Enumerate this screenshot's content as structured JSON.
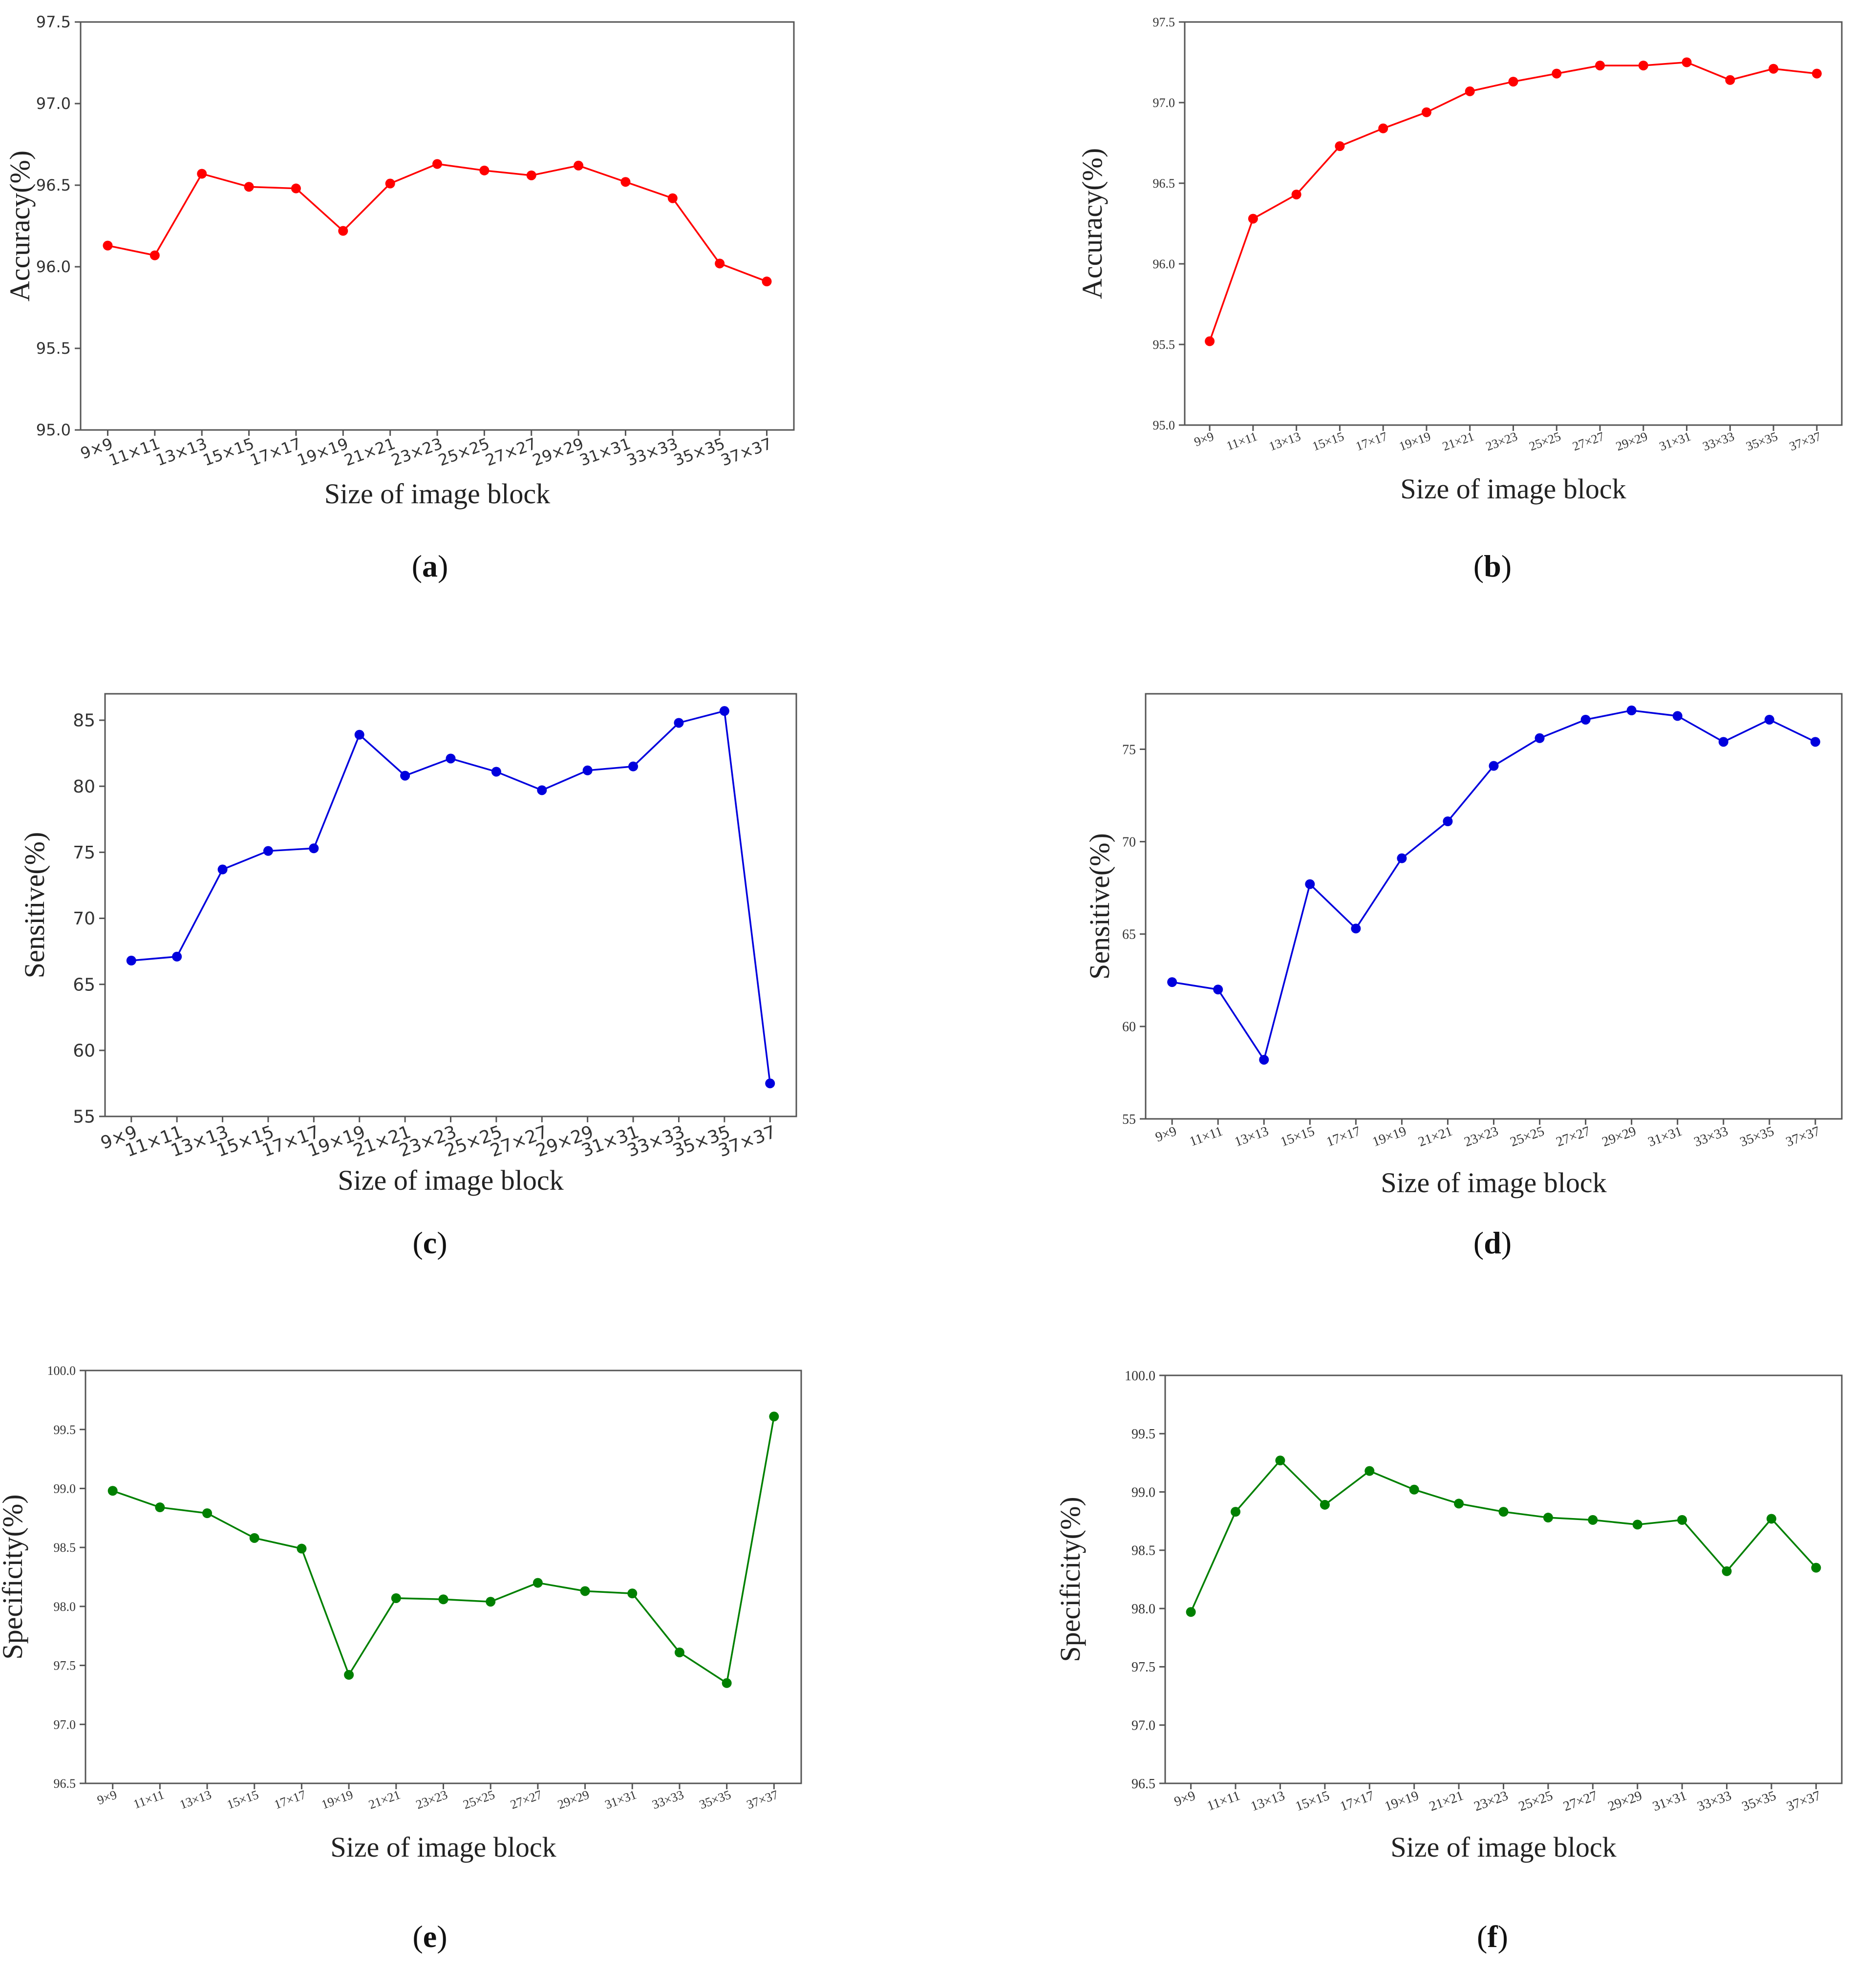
{
  "figure": {
    "panels": [
      "a",
      "b",
      "c",
      "d",
      "e",
      "f"
    ]
  },
  "chart_data": [
    {
      "id": "a",
      "caption": "a",
      "type": "line",
      "color": "#ff0000",
      "ylabel": "Accuracy(%)",
      "xlabel": "Size of image block",
      "ylim": [
        95.0,
        97.5
      ],
      "yticks": [
        95.0,
        95.5,
        96.0,
        96.5,
        97.0,
        97.5
      ],
      "ytick_decimals": 1,
      "categories": [
        "9×9",
        "11×11",
        "13×13",
        "15×15",
        "17×17",
        "19×19",
        "21×21",
        "23×23",
        "25×25",
        "27×27",
        "29×29",
        "31×31",
        "33×33",
        "35×35",
        "37×37"
      ],
      "values": [
        96.13,
        96.07,
        96.57,
        96.49,
        96.48,
        96.22,
        96.51,
        96.63,
        96.59,
        96.56,
        96.62,
        96.52,
        96.42,
        96.02,
        95.91
      ]
    },
    {
      "id": "b",
      "caption": "b",
      "type": "line",
      "color": "#ff0000",
      "ylabel": "Accuracy(%)",
      "xlabel": "Size of image block",
      "ylim": [
        95.0,
        97.5
      ],
      "yticks": [
        95.0,
        95.5,
        96.0,
        96.5,
        97.0,
        97.5
      ],
      "ytick_decimals": 1,
      "categories": [
        "9×9",
        "11×11",
        "13×13",
        "15×15",
        "17×17",
        "19×19",
        "21×21",
        "23×23",
        "25×25",
        "27×27",
        "29×29",
        "31×31",
        "33×33",
        "35×35",
        "37×37"
      ],
      "values": [
        95.52,
        96.28,
        96.43,
        96.73,
        96.84,
        96.94,
        97.07,
        97.13,
        97.18,
        97.23,
        97.23,
        97.25,
        97.14,
        97.21,
        97.18
      ]
    },
    {
      "id": "c",
      "caption": "c",
      "type": "line",
      "color": "#0000dd",
      "ylabel": "Sensitive(%)",
      "xlabel": "Size of image block",
      "ylim": [
        55,
        87
      ],
      "yticks": [
        55,
        60,
        65,
        70,
        75,
        80,
        85
      ],
      "ytick_decimals": 0,
      "categories": [
        "9×9",
        "11×11",
        "13×13",
        "15×15",
        "17×17",
        "19×19",
        "21×21",
        "23×23",
        "25×25",
        "27×27",
        "29×29",
        "31×31",
        "33×33",
        "35×35",
        "37×37"
      ],
      "values": [
        66.8,
        67.1,
        73.7,
        75.1,
        75.3,
        83.9,
        80.8,
        82.1,
        81.1,
        79.7,
        81.2,
        81.5,
        84.8,
        85.7,
        57.5
      ]
    },
    {
      "id": "d",
      "caption": "d",
      "type": "line",
      "color": "#0000dd",
      "ylabel": "Sensitive(%)",
      "xlabel": "Size of image block",
      "ylim": [
        55,
        78
      ],
      "yticks": [
        55,
        60,
        65,
        70,
        75
      ],
      "ytick_decimals": 0,
      "categories": [
        "9×9",
        "11×11",
        "13×13",
        "15×15",
        "17×17",
        "19×19",
        "21×21",
        "23×23",
        "25×25",
        "27×27",
        "29×29",
        "31×31",
        "33×33",
        "35×35",
        "37×37"
      ],
      "values": [
        62.4,
        62.0,
        58.2,
        67.7,
        65.3,
        69.1,
        71.1,
        74.1,
        75.6,
        76.6,
        77.1,
        76.8,
        75.4,
        76.6,
        75.4
      ]
    },
    {
      "id": "e",
      "caption": "e",
      "type": "line",
      "color": "#008000",
      "ylabel": "Specificity(%)",
      "xlabel": "Size of image block",
      "ylim": [
        96.5,
        100.0
      ],
      "yticks": [
        96.5,
        97.0,
        97.5,
        98.0,
        98.5,
        99.0,
        99.5,
        100.0
      ],
      "ytick_decimals": 1,
      "categories": [
        "9×9",
        "11×11",
        "13×13",
        "15×15",
        "17×17",
        "19×19",
        "21×21",
        "23×23",
        "25×25",
        "27×27",
        "29×29",
        "31×31",
        "33×33",
        "35×35",
        "37×37"
      ],
      "values": [
        98.98,
        98.84,
        98.79,
        98.58,
        98.49,
        97.42,
        98.07,
        98.06,
        98.04,
        98.2,
        98.13,
        98.11,
        97.61,
        97.35,
        99.61
      ]
    },
    {
      "id": "f",
      "caption": "f",
      "type": "line",
      "color": "#008000",
      "ylabel": "Specificity(%)",
      "xlabel": "Size of image block",
      "ylim": [
        96.5,
        100.0
      ],
      "yticks": [
        96.5,
        97.0,
        97.5,
        98.0,
        98.5,
        99.0,
        99.5,
        100.0
      ],
      "ytick_decimals": 1,
      "categories": [
        "9×9",
        "11×11",
        "13×13",
        "15×15",
        "17×17",
        "19×19",
        "21×21",
        "23×23",
        "25×25",
        "27×27",
        "29×29",
        "31×31",
        "33×33",
        "35×35",
        "37×37"
      ],
      "values": [
        97.97,
        98.83,
        99.27,
        98.89,
        99.18,
        99.02,
        98.9,
        98.83,
        98.78,
        98.76,
        98.72,
        98.76,
        98.32,
        98.77,
        98.35
      ]
    }
  ]
}
